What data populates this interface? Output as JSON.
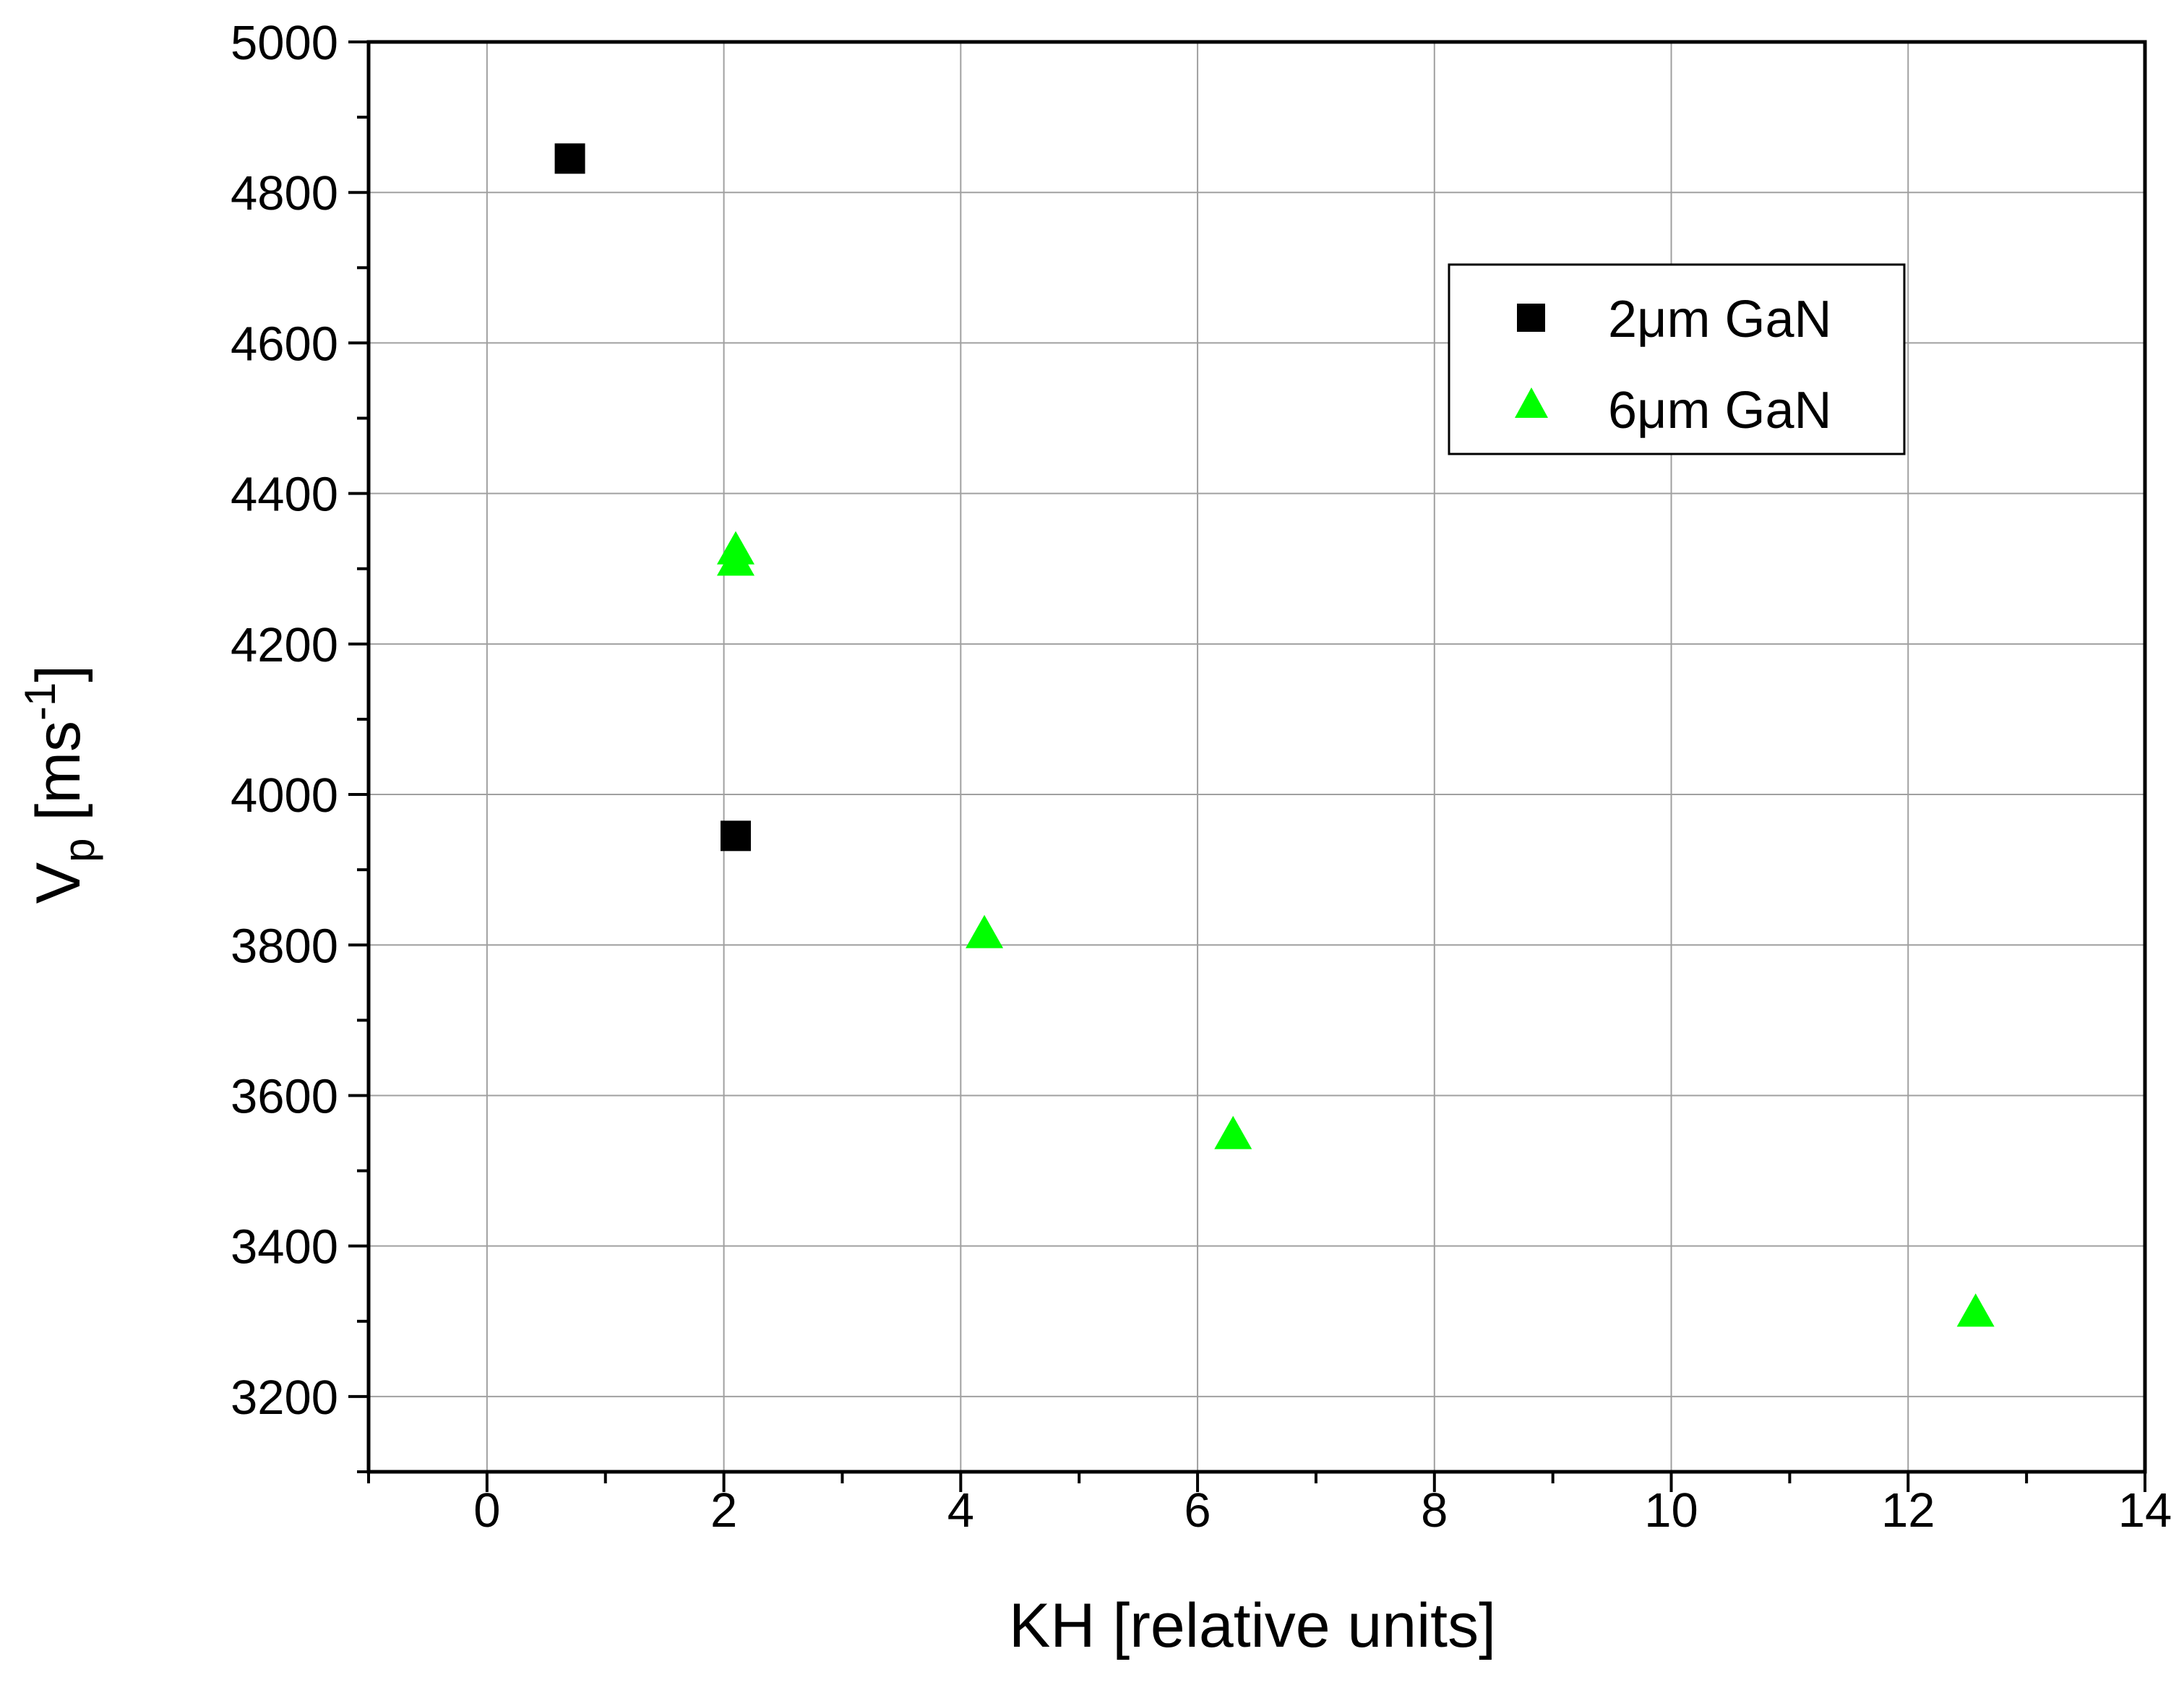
{
  "chart_data": {
    "type": "scatter",
    "xlabel": "KH [relative units]",
    "ylabel": {
      "main": "V",
      "sub": "p",
      "rest_open": " [ms",
      "sup": "-1",
      "rest_close": "]"
    },
    "xlim": [
      -1,
      14
    ],
    "ylim": [
      3100,
      5000
    ],
    "xticks": [
      0,
      2,
      4,
      6,
      8,
      10,
      12,
      14
    ],
    "yticks": [
      3200,
      3400,
      3600,
      3800,
      4000,
      4200,
      4400,
      4600,
      4800,
      5000
    ],
    "xtick_labels": [
      "0",
      "2",
      "4",
      "6",
      "8",
      "10",
      "12",
      "14"
    ],
    "ytick_labels": [
      "3200",
      "3400",
      "3600",
      "3800",
      "4000",
      "4200",
      "4400",
      "4600",
      "4800",
      "5000"
    ],
    "grid": true,
    "legend_position": "top-right",
    "series": [
      {
        "name": "2μm GaN",
        "marker": "square",
        "color": "#000000",
        "points": [
          {
            "x": 0.7,
            "y": 4845
          },
          {
            "x": 2.1,
            "y": 3945
          }
        ]
      },
      {
        "name": "6μm GaN",
        "marker": "triangle",
        "color": "#00ff00",
        "points": [
          {
            "x": 2.1,
            "y": 4325
          },
          {
            "x": 2.1,
            "y": 4310
          },
          {
            "x": 4.2,
            "y": 3815
          },
          {
            "x": 6.3,
            "y": 3548
          },
          {
            "x": 12.57,
            "y": 3312
          }
        ]
      }
    ]
  }
}
